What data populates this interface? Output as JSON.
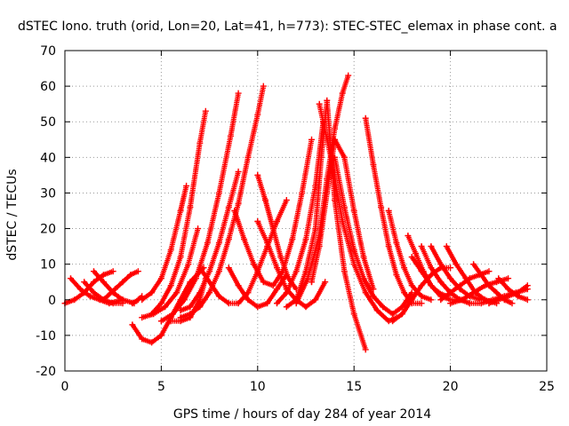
{
  "chart_data": {
    "type": "scatter",
    "title": "dSTEC Iono. truth (orid, Lon=20, Lat=41, h=773): STEC-STEC_elemax in phase cont. a",
    "xlabel": "GPS time / hours of day 284 of year 2014",
    "ylabel": "dSTEC  / TECUs",
    "xlim": [
      0,
      25
    ],
    "ylim": [
      -20,
      70
    ],
    "xticks": [
      "0",
      "5",
      "10",
      "15",
      "20",
      "25"
    ],
    "yticks": [
      "-20",
      "-10",
      "0",
      "10",
      "20",
      "30",
      "40",
      "50",
      "60",
      "70"
    ],
    "grid": true,
    "marker": "+",
    "color": "#ff0000",
    "series": [
      {
        "x": [
          0.0,
          0.5,
          1.0,
          1.5,
          2.0,
          2.5
        ],
        "y": [
          -1,
          0,
          2,
          5,
          7,
          8
        ]
      },
      {
        "x": [
          0.3,
          0.8,
          1.3,
          1.8,
          2.3,
          3.0
        ],
        "y": [
          6,
          3,
          1,
          0,
          -1,
          0
        ]
      },
      {
        "x": [
          1.0,
          1.5,
          2.0,
          2.5,
          3.0
        ],
        "y": [
          5,
          2,
          0,
          -1,
          -1
        ]
      },
      {
        "x": [
          1.5,
          2.0,
          2.5,
          3.0,
          3.6
        ],
        "y": [
          8,
          5,
          2,
          0,
          -1
        ]
      },
      {
        "x": [
          2.0,
          2.6,
          3.0,
          3.4,
          3.8
        ],
        "y": [
          0,
          3,
          5,
          7,
          8
        ]
      },
      {
        "x": [
          3.5,
          3.8,
          4.0
        ],
        "y": [
          -1,
          0,
          1
        ]
      },
      {
        "x": [
          3.5,
          4.0,
          4.5,
          5.0,
          5.5,
          6.0,
          6.5,
          7.2
        ],
        "y": [
          -7,
          -11,
          -12,
          -10,
          -5,
          0,
          5,
          9
        ]
      },
      {
        "x": [
          4.0,
          4.5,
          5.0,
          5.5,
          6.0,
          6.3
        ],
        "y": [
          0,
          2,
          6,
          14,
          25,
          32
        ]
      },
      {
        "x": [
          4.0,
          4.6,
          5.2,
          5.8,
          6.4,
          6.9
        ],
        "y": [
          -5,
          -4,
          -2,
          2,
          10,
          20
        ]
      },
      {
        "x": [
          4.5,
          5.0,
          5.5,
          6.0,
          6.5,
          7.0,
          7.3
        ],
        "y": [
          -4,
          -1,
          4,
          12,
          26,
          44,
          53
        ]
      },
      {
        "x": [
          5.0,
          5.6,
          6.2,
          6.8,
          7.4,
          8.0,
          8.6,
          9.0
        ],
        "y": [
          -6,
          -4,
          0,
          6,
          16,
          30,
          46,
          58
        ]
      },
      {
        "x": [
          5.5,
          6.0,
          6.5,
          7.0,
          7.3
        ],
        "y": [
          -6,
          -6,
          -5,
          0,
          6
        ]
      },
      {
        "x": [
          6.0,
          6.5,
          7.0,
          7.5,
          8.0,
          8.5,
          9.0,
          9.5,
          10.0,
          10.3
        ],
        "y": [
          -5,
          -4,
          -2,
          2,
          8,
          17,
          27,
          40,
          52,
          60
        ]
      },
      {
        "x": [
          6.0,
          6.5,
          7.0,
          7.5,
          8.0,
          8.5,
          9.0
        ],
        "y": [
          -3,
          -2,
          2,
          8,
          16,
          26,
          36
        ]
      },
      {
        "x": [
          7.0,
          7.5,
          8.0,
          8.5,
          9.0,
          9.5,
          10.0,
          10.5,
          11.0,
          11.5
        ],
        "y": [
          9,
          5,
          1,
          -1,
          -1,
          2,
          8,
          15,
          22,
          28
        ]
      },
      {
        "x": [
          8.5,
          9.0,
          9.5,
          10.0,
          10.5,
          11.0,
          11.5
        ],
        "y": [
          9,
          4,
          0,
          -2,
          -1,
          3,
          7
        ]
      },
      {
        "x": [
          8.8,
          9.3,
          9.8,
          10.3,
          10.8,
          11.3,
          11.8,
          12.3,
          12.8
        ],
        "y": [
          25,
          17,
          10,
          5,
          4,
          8,
          17,
          30,
          45
        ]
      },
      {
        "x": [
          10.0,
          10.4,
          10.8,
          11.2,
          11.6,
          12.0
        ],
        "y": [
          35,
          28,
          20,
          12,
          6,
          3
        ]
      },
      {
        "x": [
          10.0,
          10.5,
          11.0,
          11.5,
          12.0,
          12.5,
          13.0,
          13.5
        ],
        "y": [
          22,
          16,
          9,
          3,
          0,
          -2,
          0,
          5
        ]
      },
      {
        "x": [
          11.0,
          11.5,
          12.0,
          12.5,
          13.0,
          13.4
        ],
        "y": [
          -1,
          2,
          8,
          17,
          32,
          50
        ]
      },
      {
        "x": [
          11.5,
          12.0,
          12.5,
          13.0,
          13.3,
          13.6,
          14.0,
          14.5,
          15.0,
          15.6
        ],
        "y": [
          -2,
          0,
          8,
          20,
          40,
          56,
          28,
          8,
          -4,
          -14
        ]
      },
      {
        "x": [
          12.8,
          13.2,
          13.6,
          14.0,
          14.5,
          15.0,
          15.5,
          16.0
        ],
        "y": [
          5,
          15,
          30,
          45,
          40,
          25,
          12,
          3
        ]
      },
      {
        "x": [
          12.0,
          12.6,
          13.2,
          13.6,
          14.0,
          14.4,
          14.7
        ],
        "y": [
          -1,
          6,
          18,
          34,
          48,
          58,
          63
        ]
      },
      {
        "x": [
          13.2,
          13.8,
          14.4,
          15.0,
          15.6,
          16.2,
          16.8,
          17.2
        ],
        "y": [
          55,
          40,
          22,
          10,
          2,
          -3,
          -6,
          -5
        ]
      },
      {
        "x": [
          14.0,
          14.5,
          15.0,
          15.5,
          16.0,
          16.5,
          17.0,
          17.5,
          18.0
        ],
        "y": [
          40,
          26,
          14,
          6,
          1,
          -2,
          -4,
          -2,
          2
        ]
      },
      {
        "x": [
          15.6,
          16.0,
          16.4,
          16.8,
          17.2,
          17.6,
          18.0,
          18.5
        ],
        "y": [
          51,
          38,
          26,
          15,
          7,
          2,
          -1,
          -1
        ]
      },
      {
        "x": [
          16.8,
          17.2,
          17.6,
          18.0,
          18.5,
          19.0
        ],
        "y": [
          25,
          16,
          9,
          4,
          1,
          0
        ]
      },
      {
        "x": [
          17.0,
          17.5,
          18.0,
          18.5,
          19.0,
          19.5,
          20.0
        ],
        "y": [
          -6,
          -4,
          0,
          4,
          7,
          9,
          9
        ]
      },
      {
        "x": [
          17.8,
          18.2,
          18.6,
          19.0,
          19.4,
          19.8
        ],
        "y": [
          18,
          13,
          8,
          4,
          2,
          1
        ]
      },
      {
        "x": [
          18.0,
          18.5,
          19.0,
          19.5,
          20.0,
          20.5
        ],
        "y": [
          12,
          8,
          4,
          1,
          0,
          0
        ]
      },
      {
        "x": [
          18.5,
          19.0,
          19.5,
          20.0,
          20.5,
          21.0
        ],
        "y": [
          15,
          9,
          5,
          2,
          0,
          -1
        ]
      },
      {
        "x": [
          19.0,
          19.5,
          20.0,
          20.5,
          21.0,
          21.6
        ],
        "y": [
          15,
          10,
          6,
          3,
          1,
          0
        ]
      },
      {
        "x": [
          19.8,
          20.3,
          20.8,
          21.3,
          21.8,
          22.4
        ],
        "y": [
          15,
          10,
          6,
          2,
          0,
          -1
        ]
      },
      {
        "x": [
          19.5,
          20.0,
          20.5,
          21.0,
          21.5,
          22.0
        ],
        "y": [
          0,
          2,
          4,
          6,
          7,
          8
        ]
      },
      {
        "x": [
          20.0,
          20.6,
          21.2,
          21.8,
          22.4,
          23.0
        ],
        "y": [
          -1,
          0,
          2,
          4,
          5,
          6
        ]
      },
      {
        "x": [
          21.2,
          21.6,
          22.0,
          22.4,
          22.8,
          23.2
        ],
        "y": [
          10,
          7,
          4,
          2,
          0,
          -1
        ]
      },
      {
        "x": [
          21.0,
          21.6,
          22.2,
          22.8,
          23.4,
          24.0
        ],
        "y": [
          -1,
          -1,
          0,
          1,
          2,
          3
        ]
      },
      {
        "x": [
          22.0,
          22.5,
          23.0,
          23.5,
          24.0
        ],
        "y": [
          -1,
          0,
          1,
          2,
          4
        ]
      },
      {
        "x": [
          22.5,
          23.0,
          23.5,
          24.0
        ],
        "y": [
          6,
          3,
          1,
          0
        ]
      }
    ]
  }
}
